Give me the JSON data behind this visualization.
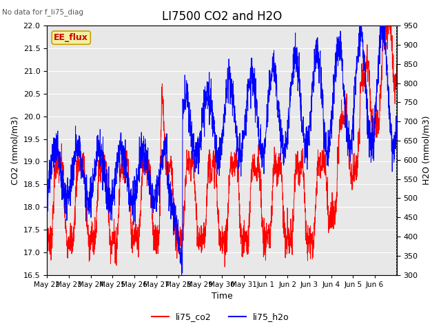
{
  "title": "LI7500 CO2 and H2O",
  "no_data_text": "No data for f_li75_diag",
  "box_label": "EE_flux",
  "xlabel": "Time",
  "ylabel_left": "CO2 (mmol/m3)",
  "ylabel_right": "H2O (mmol/m3)",
  "ylim_left": [
    16.5,
    22.0
  ],
  "ylim_right": [
    300,
    950
  ],
  "yticks_left": [
    16.5,
    17.0,
    17.5,
    18.0,
    18.5,
    19.0,
    19.5,
    20.0,
    20.5,
    21.0,
    21.5,
    22.0
  ],
  "yticks_right": [
    300,
    350,
    400,
    450,
    500,
    550,
    600,
    650,
    700,
    750,
    800,
    850,
    900,
    950
  ],
  "xtick_labels": [
    "May 22",
    "May 23",
    "May 24",
    "May 25",
    "May 26",
    "May 27",
    "May 28",
    "May 29",
    "May 30",
    "May 31",
    "Jun 1",
    "Jun 2",
    "Jun 3",
    "Jun 4",
    "Jun 5",
    "Jun 6"
  ],
  "legend_labels": [
    "li75_co2",
    "li75_h2o"
  ],
  "line_colors": [
    "red",
    "blue"
  ],
  "plot_bg_color": "#e8e8e8",
  "grid_color": "white",
  "title_fontsize": 12,
  "label_fontsize": 9,
  "tick_fontsize": 8
}
